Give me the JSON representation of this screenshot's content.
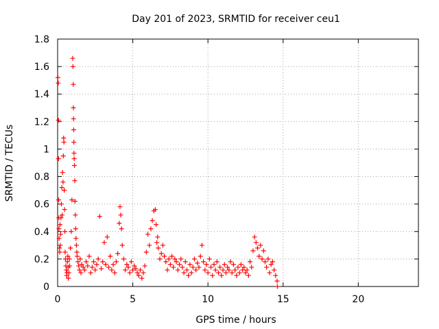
{
  "chart_data": {
    "type": "scatter",
    "title": "Day 201 of 2023, SRMTID for receiver ceu1",
    "xlabel": "GPS time / hours",
    "ylabel": "SRMTID / TECUs",
    "xlim": [
      0,
      24
    ],
    "ylim": [
      0,
      1.8
    ],
    "grid": true,
    "marker": "+",
    "xticks": [
      0,
      5,
      10,
      15,
      20
    ],
    "xtick_labels": [
      "0",
      "5",
      "10",
      "15",
      "20"
    ],
    "yticks": [
      0,
      0.2,
      0.4,
      0.6,
      0.8,
      1,
      1.2,
      1.4,
      1.6,
      1.8
    ],
    "ytick_labels": [
      "0",
      "0.2",
      "0.4",
      "0.6",
      "0.8",
      "1",
      "1.2",
      "1.4",
      "1.6",
      "1.8"
    ],
    "series": [
      {
        "name": "SRMTID",
        "color": "#ff0000",
        "x": [
          0.02,
          0.04,
          0.05,
          0.06,
          0.07,
          0.08,
          0.09,
          0.1,
          0.12,
          0.14,
          0.16,
          0.18,
          0.2,
          0.22,
          0.25,
          0.28,
          0.3,
          0.33,
          0.36,
          0.38,
          0.4,
          0.42,
          0.44,
          0.46,
          0.48,
          0.5,
          0.52,
          0.55,
          0.58,
          0.6,
          0.62,
          0.65,
          0.68,
          0.7,
          0.72,
          0.75,
          0.78,
          0.8,
          0.85,
          0.9,
          0.95,
          1.0,
          1.02,
          1.04,
          1.05,
          1.06,
          1.07,
          1.08,
          1.09,
          1.1,
          1.12,
          1.14,
          1.16,
          1.18,
          1.2,
          1.22,
          1.25,
          1.28,
          1.3,
          1.35,
          1.4,
          1.45,
          1.5,
          1.55,
          1.6,
          1.7,
          1.8,
          1.9,
          2.0,
          2.1,
          2.2,
          2.3,
          2.4,
          2.5,
          2.6,
          2.7,
          2.8,
          2.9,
          3.0,
          3.1,
          3.2,
          3.3,
          3.4,
          3.5,
          3.6,
          3.7,
          3.8,
          3.9,
          4.0,
          4.1,
          4.15,
          4.2,
          4.25,
          4.3,
          4.4,
          4.5,
          4.6,
          4.7,
          4.8,
          4.9,
          5.0,
          5.1,
          5.2,
          5.3,
          5.4,
          5.5,
          5.6,
          5.7,
          5.8,
          5.9,
          6.0,
          6.1,
          6.2,
          6.3,
          6.4,
          6.5,
          6.55,
          6.6,
          6.65,
          6.7,
          6.8,
          6.9,
          7.0,
          7.1,
          7.2,
          7.3,
          7.4,
          7.5,
          7.6,
          7.7,
          7.8,
          7.9,
          8.0,
          8.1,
          8.2,
          8.3,
          8.4,
          8.5,
          8.6,
          8.7,
          8.8,
          8.9,
          9.0,
          9.1,
          9.2,
          9.3,
          9.4,
          9.5,
          9.6,
          9.7,
          9.8,
          9.9,
          10.0,
          10.1,
          10.2,
          10.3,
          10.4,
          10.5,
          10.6,
          10.7,
          10.8,
          10.9,
          11.0,
          11.1,
          11.2,
          11.3,
          11.4,
          11.5,
          11.6,
          11.7,
          11.8,
          11.9,
          12.0,
          12.1,
          12.2,
          12.3,
          12.4,
          12.5,
          12.6,
          12.7,
          12.8,
          12.9,
          13.0,
          13.1,
          13.2,
          13.3,
          13.4,
          13.5,
          13.6,
          13.7,
          13.8,
          13.9,
          14.0,
          14.1,
          14.2,
          14.3,
          14.4,
          14.5,
          14.6,
          14.62
        ],
        "y": [
          1.52,
          1.48,
          1.21,
          0.93,
          0.63,
          0.5,
          0.42,
          0.35,
          0.28,
          0.25,
          0.45,
          0.3,
          0.38,
          0.5,
          0.6,
          0.72,
          0.52,
          0.83,
          0.76,
          0.95,
          1.08,
          1.05,
          0.7,
          0.56,
          0.4,
          0.25,
          0.2,
          0.15,
          0.12,
          0.08,
          0.1,
          0.18,
          0.22,
          0.14,
          0.06,
          0.1,
          0.2,
          0.15,
          0.28,
          0.4,
          0.63,
          1.66,
          1.6,
          1.47,
          1.3,
          1.22,
          1.14,
          1.05,
          0.97,
          0.93,
          0.88,
          0.77,
          0.62,
          0.52,
          0.42,
          0.35,
          0.3,
          0.25,
          0.22,
          0.18,
          0.15,
          0.12,
          0.2,
          0.1,
          0.16,
          0.14,
          0.12,
          0.18,
          0.15,
          0.22,
          0.1,
          0.14,
          0.18,
          0.12,
          0.16,
          0.2,
          0.51,
          0.13,
          0.18,
          0.32,
          0.16,
          0.36,
          0.14,
          0.22,
          0.12,
          0.16,
          0.1,
          0.18,
          0.24,
          0.46,
          0.58,
          0.52,
          0.42,
          0.3,
          0.2,
          0.12,
          0.16,
          0.14,
          0.1,
          0.18,
          0.12,
          0.15,
          0.13,
          0.1,
          0.08,
          0.12,
          0.06,
          0.1,
          0.15,
          0.25,
          0.38,
          0.3,
          0.42,
          0.48,
          0.55,
          0.56,
          0.45,
          0.32,
          0.36,
          0.28,
          0.2,
          0.24,
          0.3,
          0.22,
          0.18,
          0.12,
          0.2,
          0.16,
          0.22,
          0.14,
          0.2,
          0.18,
          0.12,
          0.16,
          0.2,
          0.14,
          0.1,
          0.18,
          0.12,
          0.08,
          0.16,
          0.1,
          0.14,
          0.2,
          0.12,
          0.17,
          0.14,
          0.22,
          0.3,
          0.18,
          0.12,
          0.16,
          0.1,
          0.2,
          0.14,
          0.08,
          0.16,
          0.12,
          0.18,
          0.1,
          0.14,
          0.08,
          0.12,
          0.16,
          0.1,
          0.14,
          0.12,
          0.18,
          0.1,
          0.16,
          0.12,
          0.08,
          0.14,
          0.1,
          0.16,
          0.12,
          0.14,
          0.1,
          0.12,
          0.08,
          0.18,
          0.14,
          0.26,
          0.36,
          0.32,
          0.28,
          0.22,
          0.3,
          0.2,
          0.26,
          0.18,
          0.14,
          0.2,
          0.1,
          0.16,
          0.18,
          0.12,
          0.08,
          0.04,
          0.0
        ]
      }
    ]
  }
}
